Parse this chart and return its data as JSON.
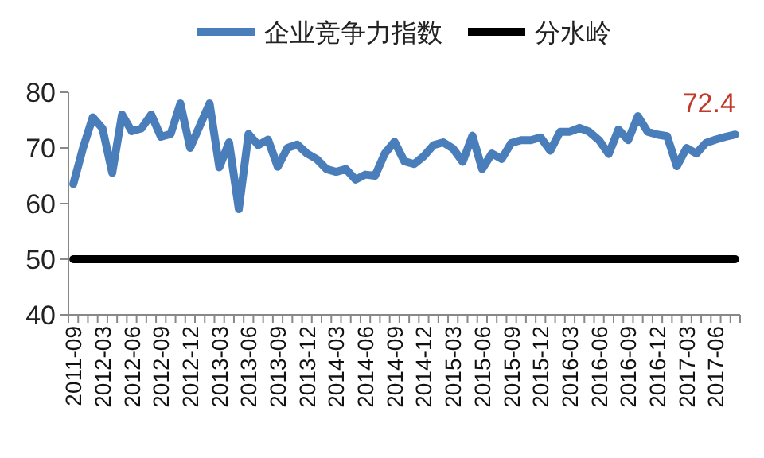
{
  "chart_data": {
    "type": "line",
    "categories": [
      "2011-09",
      null,
      null,
      "2012-03",
      null,
      null,
      "2012-06",
      null,
      null,
      "2012-09",
      null,
      null,
      "2012-12",
      null,
      null,
      "2013-03",
      null,
      null,
      "2013-06",
      null,
      null,
      "2013-09",
      null,
      null,
      "2013-12",
      null,
      null,
      "2014-03",
      null,
      null,
      "2014-06",
      null,
      null,
      "2014-09",
      null,
      null,
      "2014-12",
      null,
      null,
      "2015-03",
      null,
      null,
      "2015-06",
      null,
      null,
      "2015-09",
      null,
      null,
      "2015-12",
      null,
      null,
      "2016-03",
      null,
      null,
      "2016-06",
      null,
      null,
      "2016-09",
      null,
      null,
      "2016-12",
      null,
      null,
      "2017-03",
      null,
      null,
      "2017-06",
      null,
      null
    ],
    "series": [
      {
        "name": "企业竞争力指数",
        "color": "#4a7ebb",
        "values": [
          63.5,
          70,
          75.5,
          73.5,
          65.5,
          76,
          73,
          73.5,
          76,
          72,
          72.5,
          78,
          70,
          74,
          78,
          66.5,
          71,
          59,
          72.5,
          70.5,
          71.5,
          66.6,
          70,
          70.6,
          69,
          68,
          66.2,
          65.7,
          66.2,
          64.3,
          65.2,
          65,
          69,
          71.1,
          67.6,
          67.1,
          68.5,
          70.5,
          71,
          69.9,
          67.5,
          72.2,
          66.2,
          69,
          68,
          70.9,
          71.4,
          71.4,
          71.9,
          69.5,
          72.9,
          72.9,
          73.6,
          72.9,
          71.4,
          68.9,
          73.3,
          71.4,
          75.7,
          72.9,
          72.4,
          72.1,
          66.7,
          70,
          69,
          70.9,
          71.5,
          72,
          72.4
        ],
        "value_labels": [
          null,
          null,
          null,
          null,
          null,
          null,
          null,
          null,
          null,
          null,
          null,
          null,
          null,
          null,
          null,
          null,
          null,
          null,
          null,
          null,
          null,
          null,
          null,
          null,
          null,
          null,
          null,
          null,
          null,
          null,
          null,
          null,
          null,
          null,
          null,
          null,
          null,
          null,
          null,
          null,
          null,
          null,
          null,
          null,
          null,
          null,
          null,
          null,
          null,
          null,
          null,
          null,
          null,
          null,
          null,
          null,
          null,
          null,
          null,
          null,
          null,
          null,
          null,
          null,
          null,
          null,
          null,
          null,
          "72.4"
        ]
      },
      {
        "name": "分水岭",
        "color": "#000000",
        "values": [
          50,
          50,
          50,
          50,
          50,
          50,
          50,
          50,
          50,
          50,
          50,
          50,
          50,
          50,
          50,
          50,
          50,
          50,
          50,
          50,
          50,
          50,
          50,
          50,
          50,
          50,
          50,
          50,
          50,
          50,
          50,
          50,
          50,
          50,
          50,
          50,
          50,
          50,
          50,
          50,
          50,
          50,
          50,
          50,
          50,
          50,
          50,
          50,
          50,
          50,
          50,
          50,
          50,
          50,
          50,
          50,
          50,
          50,
          50,
          50,
          50,
          50,
          50,
          50,
          50,
          50,
          50,
          50,
          50
        ]
      }
    ],
    "ylim": [
      40,
      80
    ],
    "yticks": [
      40,
      50,
      60,
      70,
      80
    ],
    "grid": false,
    "legend": "top",
    "marker": "none",
    "line_style": "solid"
  }
}
